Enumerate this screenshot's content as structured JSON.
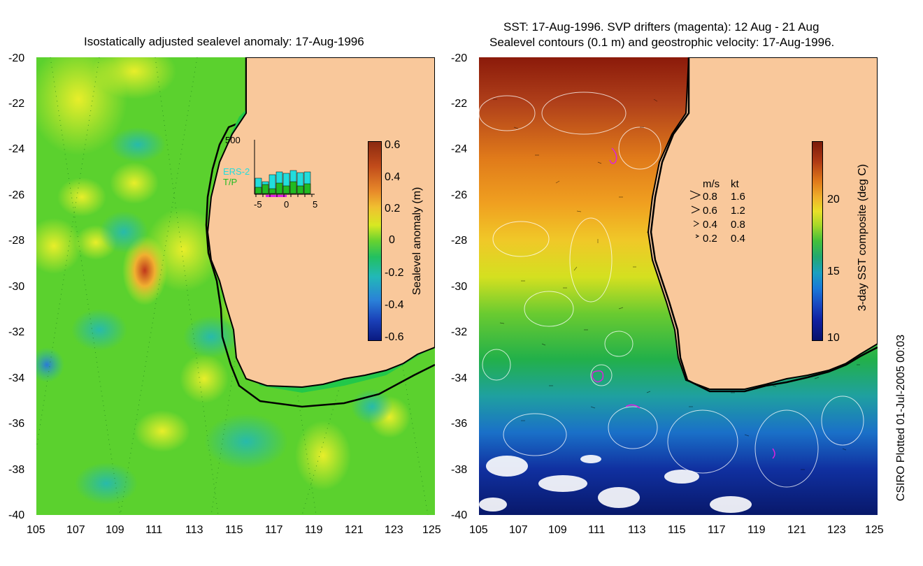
{
  "left_panel": {
    "title": "Isostatically adjusted sealevel anomaly: 17-Aug-1996",
    "colorbar": {
      "label": "Sealevel anomaly (m)",
      "ticks": [
        "0.6",
        "0.4",
        "0.2",
        "0",
        "-0.2",
        "-0.4",
        "-0.6"
      ]
    },
    "inset": {
      "ytop": "500",
      "series_labels": [
        "ERS-2",
        "T/P"
      ],
      "series_colors": [
        "#22dddd",
        "#22bb22"
      ],
      "xticks": [
        "-5",
        "0",
        "5"
      ]
    }
  },
  "right_panel": {
    "title_line1": "SST: 17-Aug-1996. SVP drifters (magenta): 12 Aug - 21 Aug",
    "title_line2": "Sealevel contours (0.1 m) and geostrophic velocity: 17-Aug-1996.",
    "colorbar": {
      "label": "3-day SST composite (deg C)",
      "ticks": [
        "20",
        "15",
        "10"
      ]
    },
    "velocity_legend": {
      "header_ms": "m/s",
      "header_kt": "kt",
      "rows": [
        {
          "ms": "0.8",
          "kt": "1.6"
        },
        {
          "ms": "0.6",
          "kt": "1.2"
        },
        {
          "ms": "0.4",
          "kt": "0.8"
        },
        {
          "ms": "0.2",
          "kt": "0.4"
        }
      ]
    }
  },
  "axes": {
    "lat_ticks": [
      "-20",
      "-22",
      "-24",
      "-26",
      "-28",
      "-30",
      "-32",
      "-34",
      "-36",
      "-38",
      "-40"
    ],
    "lon_ticks": [
      "105",
      "107",
      "109",
      "111",
      "113",
      "115",
      "117",
      "119",
      "121",
      "123",
      "125"
    ]
  },
  "credit": "CSIRO Plotted 01-Jul-2005 00:03",
  "colors": {
    "land": "#f9c89b",
    "ocean_green": "#22c84a",
    "coast": "#000000"
  }
}
